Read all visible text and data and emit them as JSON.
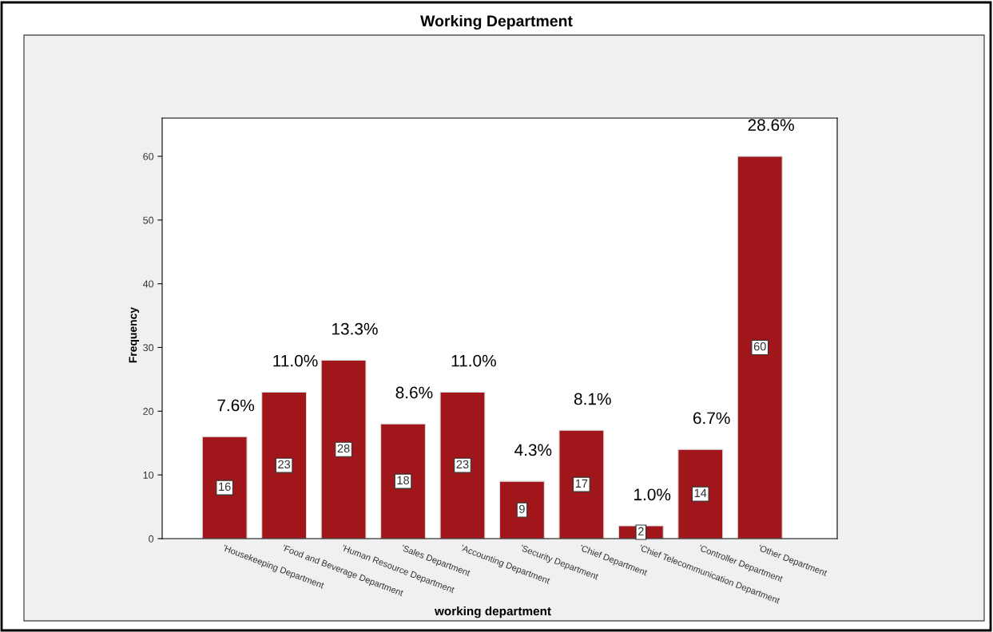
{
  "chart_data": {
    "type": "bar",
    "title": "Working Department",
    "xlabel": "working department",
    "ylabel": "Frequency",
    "categories": [
      "'Housekeeping Department",
      "'Food and Beverage Department",
      "'Human Resource Department",
      "'Sales Department",
      "'Accounting Department",
      "'Security Department",
      "'Chief Department",
      "'Chief Telecommunication Department",
      "'Controller Department",
      "'Other Department"
    ],
    "values": [
      16,
      23,
      28,
      18,
      23,
      9,
      17,
      2,
      14,
      60
    ],
    "color": "#a0161a",
    "ylim": [
      0,
      66
    ],
    "yticks": [
      0,
      10,
      20,
      30,
      40,
      50,
      60
    ],
    "data_labels": true,
    "annotations": [
      {
        "text": "7.6%",
        "x": "'Housekeeping Department",
        "y": 16
      },
      {
        "text": "11.0%",
        "x": "'Food and Beverage Department",
        "y": 23
      },
      {
        "text": "13.3%",
        "x": "'Human Resource Department",
        "y": 28
      },
      {
        "text": "8.6%",
        "x": "'Sales Department",
        "y": 18
      },
      {
        "text": "11.0%",
        "x": "'Accounting Department",
        "y": 23
      },
      {
        "text": "4.3%",
        "x": "'Security Department",
        "y": 9
      },
      {
        "text": "8.1%",
        "x": "'Chief Department",
        "y": 17
      },
      {
        "text": "1.0%",
        "x": "'Chief Telecommunication Department",
        "y": 2
      },
      {
        "text": "6.7%",
        "x": "'Controller Department",
        "y": 14
      },
      {
        "text": "28.6%",
        "x": "'Other Department",
        "y": 60
      }
    ]
  }
}
